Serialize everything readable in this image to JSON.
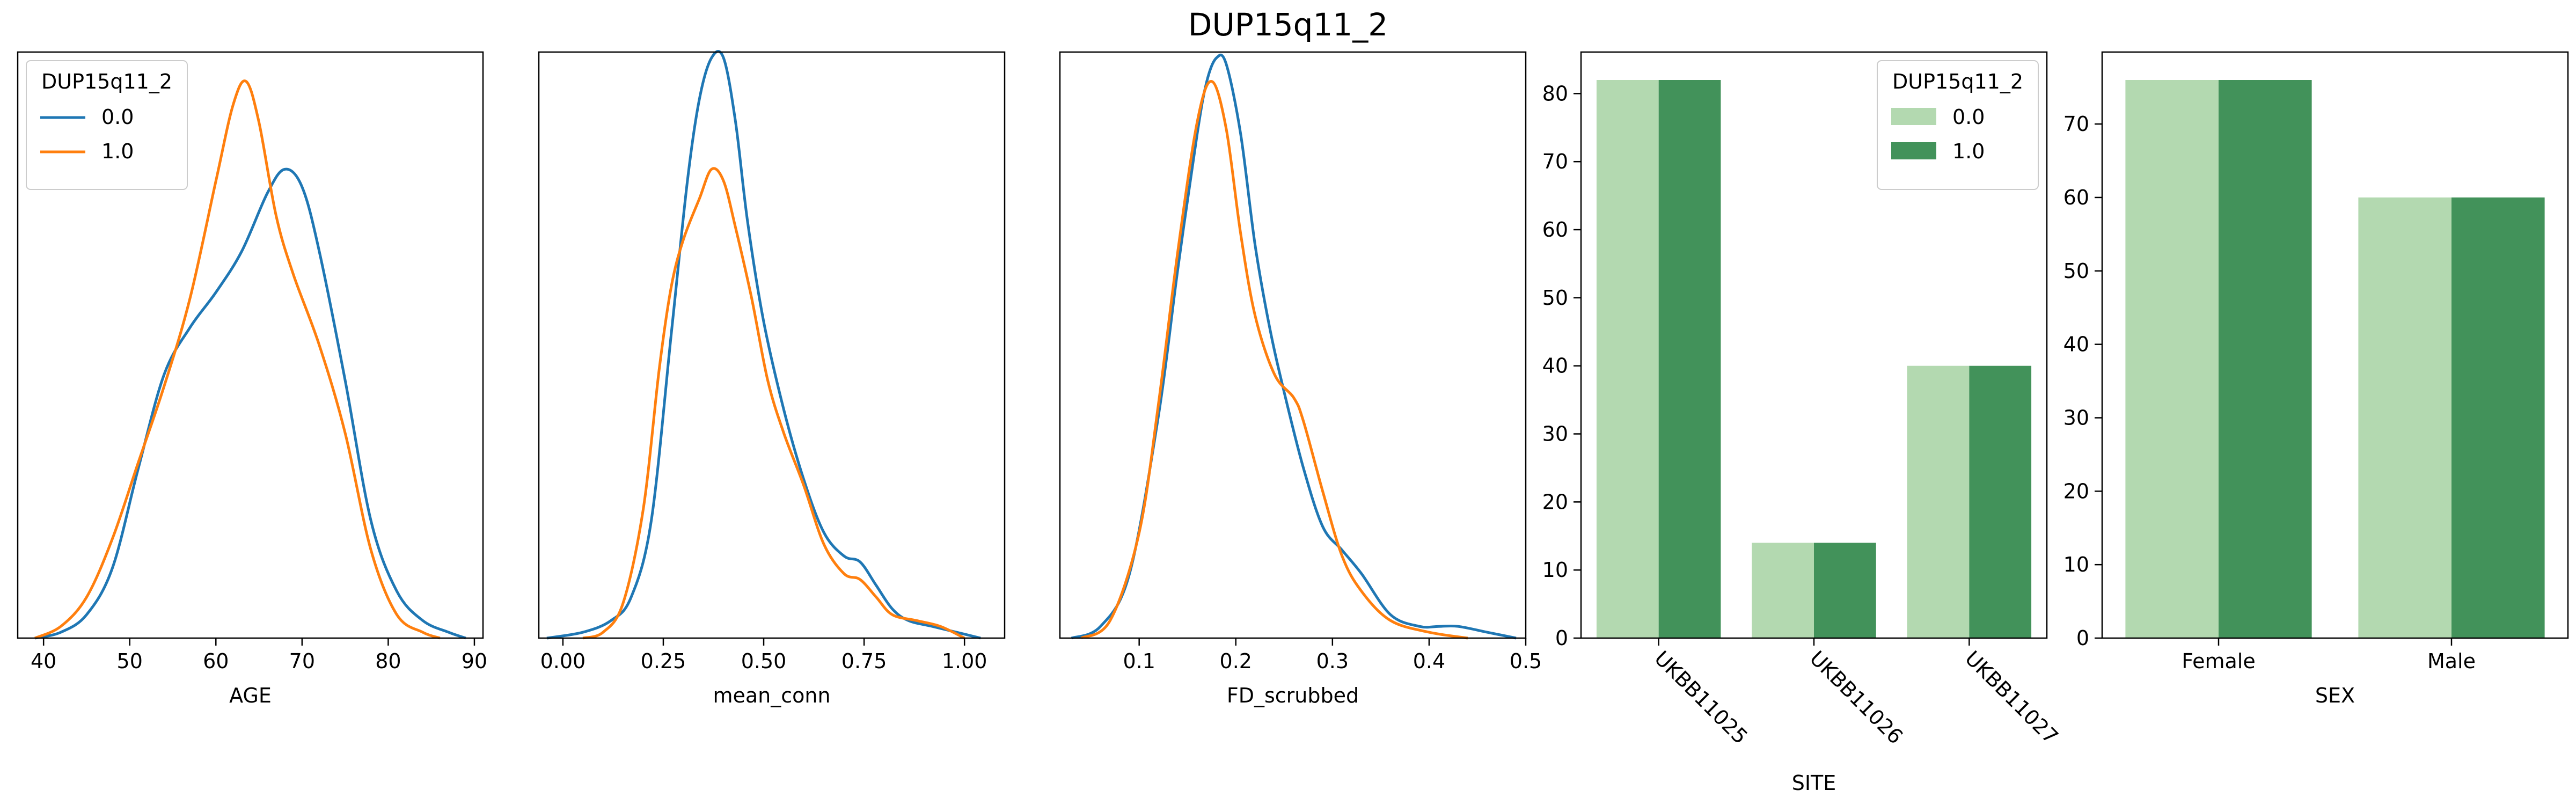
{
  "figure": {
    "title": "DUP15q11_2"
  },
  "colors": {
    "kde_0": "#1f77b4",
    "kde_1": "#ff7f0e",
    "bar_0": "#b3d9b0",
    "bar_1": "#42925a"
  },
  "chart_data": [
    {
      "type": "line",
      "kind": "kde",
      "xlabel": "AGE",
      "ylabel": "",
      "xlim": [
        37,
        91
      ],
      "ylim": [
        0,
        1
      ],
      "xticks": [
        40,
        50,
        60,
        70,
        80,
        90
      ],
      "yticks_visible": false,
      "legend": {
        "title": "DUP15q11_2",
        "labels": [
          "0.0",
          "1.0"
        ],
        "position": "upper left"
      },
      "series": [
        {
          "name": "0.0",
          "x": [
            39,
            42,
            45,
            48,
            51,
            54,
            57,
            60,
            63,
            66,
            68,
            70,
            72,
            75,
            78,
            81,
            84,
            87,
            89
          ],
          "y": [
            0.0,
            0.01,
            0.04,
            0.12,
            0.29,
            0.45,
            0.53,
            0.59,
            0.66,
            0.76,
            0.8,
            0.77,
            0.66,
            0.44,
            0.2,
            0.08,
            0.03,
            0.01,
            0.0
          ]
        },
        {
          "name": "1.0",
          "x": [
            39,
            42,
            45,
            48,
            51,
            54,
            57,
            60,
            62,
            63.5,
            65,
            67,
            69,
            72,
            75,
            78,
            81,
            84,
            86
          ],
          "y": [
            0.0,
            0.02,
            0.07,
            0.17,
            0.3,
            0.43,
            0.58,
            0.78,
            0.91,
            0.95,
            0.88,
            0.72,
            0.62,
            0.5,
            0.35,
            0.15,
            0.04,
            0.01,
            0.0
          ]
        }
      ]
    },
    {
      "type": "line",
      "kind": "kde",
      "xlabel": "mean_conn",
      "ylabel": "",
      "xlim": [
        -0.06,
        1.1
      ],
      "ylim": [
        0,
        1
      ],
      "xticks": [
        0.0,
        0.25,
        0.5,
        0.75,
        1.0
      ],
      "yticks_visible": false,
      "series": [
        {
          "name": "0.0",
          "x": [
            -0.04,
            0.05,
            0.12,
            0.17,
            0.22,
            0.27,
            0.31,
            0.34,
            0.37,
            0.4,
            0.43,
            0.46,
            0.5,
            0.55,
            0.6,
            0.65,
            0.7,
            0.74,
            0.78,
            0.82,
            0.86,
            0.92,
            0.98,
            1.04
          ],
          "y": [
            0.0,
            0.01,
            0.03,
            0.07,
            0.2,
            0.52,
            0.78,
            0.92,
            0.99,
            0.99,
            0.88,
            0.71,
            0.54,
            0.39,
            0.27,
            0.18,
            0.14,
            0.13,
            0.09,
            0.05,
            0.03,
            0.02,
            0.01,
            0.0
          ]
        },
        {
          "name": "1.0",
          "x": [
            0.05,
            0.1,
            0.15,
            0.2,
            0.24,
            0.27,
            0.3,
            0.34,
            0.37,
            0.4,
            0.43,
            0.47,
            0.51,
            0.55,
            0.6,
            0.65,
            0.7,
            0.74,
            0.78,
            0.82,
            0.88,
            0.94,
            1.0
          ],
          "y": [
            0.0,
            0.01,
            0.06,
            0.22,
            0.46,
            0.6,
            0.68,
            0.75,
            0.8,
            0.78,
            0.7,
            0.58,
            0.44,
            0.35,
            0.26,
            0.16,
            0.11,
            0.1,
            0.07,
            0.04,
            0.03,
            0.02,
            0.0
          ]
        }
      ]
    },
    {
      "type": "line",
      "kind": "kde",
      "xlabel": "FD_scrubbed",
      "ylabel": "",
      "xlim": [
        0.018,
        0.5
      ],
      "ylim": [
        0,
        1
      ],
      "xticks": [
        0.1,
        0.2,
        0.3,
        0.4,
        0.5
      ],
      "yticks_visible": false,
      "series": [
        {
          "name": "0.0",
          "x": [
            0.03,
            0.06,
            0.09,
            0.12,
            0.14,
            0.16,
            0.17,
            0.18,
            0.19,
            0.205,
            0.22,
            0.235,
            0.25,
            0.27,
            0.29,
            0.31,
            0.33,
            0.36,
            0.39,
            0.41,
            0.43,
            0.46,
            0.49
          ],
          "y": [
            0.0,
            0.02,
            0.11,
            0.38,
            0.63,
            0.86,
            0.95,
            0.99,
            0.98,
            0.86,
            0.67,
            0.53,
            0.42,
            0.29,
            0.19,
            0.15,
            0.11,
            0.04,
            0.02,
            0.02,
            0.02,
            0.01,
            0.0
          ]
        },
        {
          "name": "1.0",
          "x": [
            0.04,
            0.07,
            0.1,
            0.12,
            0.14,
            0.16,
            0.175,
            0.19,
            0.205,
            0.22,
            0.24,
            0.26,
            0.27,
            0.29,
            0.31,
            0.33,
            0.36,
            0.4,
            0.44
          ],
          "y": [
            0.0,
            0.03,
            0.18,
            0.4,
            0.66,
            0.88,
            0.95,
            0.87,
            0.69,
            0.55,
            0.45,
            0.41,
            0.37,
            0.25,
            0.14,
            0.08,
            0.03,
            0.01,
            0.0
          ]
        }
      ]
    },
    {
      "type": "bar",
      "xlabel": "SITE",
      "ylabel": "",
      "categories": [
        "UKBB11025",
        "UKBB11026",
        "UKBB11027"
      ],
      "tick_rotation": -45,
      "ylim": [
        0,
        86.1
      ],
      "yticks": [
        0,
        10,
        20,
        30,
        40,
        50,
        60,
        70,
        80
      ],
      "legend": {
        "title": "DUP15q11_2",
        "labels": [
          "0.0",
          "1.0"
        ],
        "position": "upper right"
      },
      "series": [
        {
          "name": "0.0",
          "values": [
            82,
            14,
            40
          ]
        },
        {
          "name": "1.0",
          "values": [
            82,
            14,
            40
          ]
        }
      ]
    },
    {
      "type": "bar",
      "xlabel": "SEX",
      "ylabel": "",
      "categories": [
        "Female",
        "Male"
      ],
      "tick_rotation": 0,
      "ylim": [
        0,
        79.8
      ],
      "yticks": [
        0,
        10,
        20,
        30,
        40,
        50,
        60,
        70
      ],
      "series": [
        {
          "name": "0.0",
          "values": [
            76,
            60
          ]
        },
        {
          "name": "1.0",
          "values": [
            76,
            60
          ]
        }
      ]
    }
  ]
}
